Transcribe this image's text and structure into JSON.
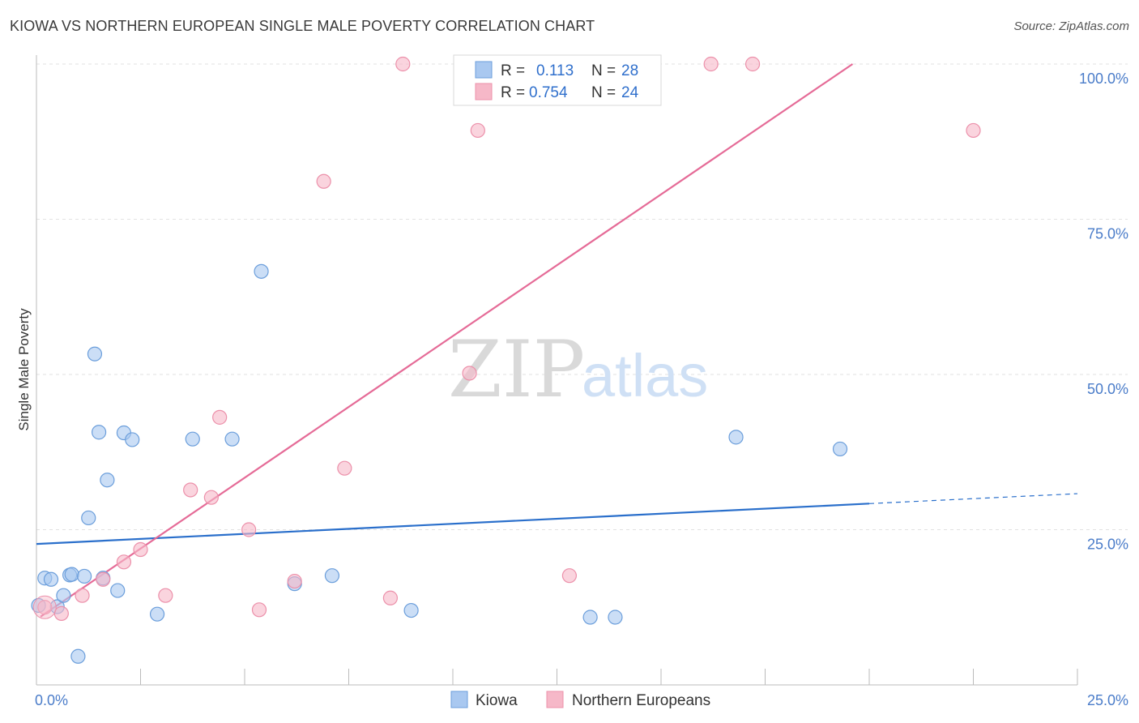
{
  "title": "KIOWA VS NORTHERN EUROPEAN SINGLE MALE POVERTY CORRELATION CHART",
  "source": "Source: ZipAtlas.com",
  "watermark": {
    "zip": "ZIP",
    "atlas": "atlas"
  },
  "legend_top": [
    {
      "r_label": "R =",
      "r_value": "0.113",
      "n_label": "N =",
      "n_value": "28",
      "color": "#a9c8f0"
    },
    {
      "r_label": "R =",
      "r_value": "0.754",
      "n_label": "N =",
      "n_value": "24",
      "color": "#f6b8c8"
    }
  ],
  "chart_data": {
    "type": "scatter",
    "title": "KIOWA VS NORTHERN EUROPEAN SINGLE MALE POVERTY CORRELATION CHART",
    "xlabel": "",
    "ylabel": "Single Male Poverty",
    "xlim": [
      0,
      25
    ],
    "ylim": [
      0,
      100
    ],
    "x_tick_labels": [
      "0.0%",
      "25.0%"
    ],
    "y_ticks": [
      25,
      50,
      75,
      100
    ],
    "y_tick_labels": [
      "25.0%",
      "50.0%",
      "75.0%",
      "100.0%"
    ],
    "grid": true,
    "legend_placement": "bottom-center",
    "series": [
      {
        "name": "Kiowa",
        "color": "#a9c8f0",
        "stroke": "#6b9edb",
        "line_color": "#2a6fcb",
        "trend": {
          "x": [
            0,
            20
          ],
          "y": [
            22.7,
            29.2
          ],
          "dashed_to_x": 25,
          "dashed_to_y": 30.8
        },
        "points": [
          {
            "x": 0.05,
            "y": 12.8
          },
          {
            "x": 0.2,
            "y": 17.2
          },
          {
            "x": 0.35,
            "y": 17.0
          },
          {
            "x": 0.5,
            "y": 12.6
          },
          {
            "x": 0.65,
            "y": 14.4
          },
          {
            "x": 0.8,
            "y": 17.7
          },
          {
            "x": 0.85,
            "y": 17.8
          },
          {
            "x": 1.0,
            "y": 4.6
          },
          {
            "x": 1.15,
            "y": 17.5
          },
          {
            "x": 1.25,
            "y": 26.9
          },
          {
            "x": 1.4,
            "y": 53.3
          },
          {
            "x": 1.5,
            "y": 40.7
          },
          {
            "x": 1.6,
            "y": 17.2
          },
          {
            "x": 1.7,
            "y": 33.0
          },
          {
            "x": 1.95,
            "y": 15.2
          },
          {
            "x": 2.1,
            "y": 40.6
          },
          {
            "x": 2.3,
            "y": 39.5
          },
          {
            "x": 2.9,
            "y": 11.4
          },
          {
            "x": 3.75,
            "y": 39.6
          },
          {
            "x": 4.7,
            "y": 39.6
          },
          {
            "x": 5.4,
            "y": 66.6
          },
          {
            "x": 6.2,
            "y": 16.3
          },
          {
            "x": 7.1,
            "y": 17.6
          },
          {
            "x": 9.0,
            "y": 12.0
          },
          {
            "x": 13.3,
            "y": 10.9
          },
          {
            "x": 13.9,
            "y": 10.9
          },
          {
            "x": 16.8,
            "y": 39.9
          },
          {
            "x": 19.3,
            "y": 38.0
          }
        ]
      },
      {
        "name": "Northern Europeans",
        "color": "#f6b8c8",
        "stroke": "#ec90aa",
        "line_color": "#e56b97",
        "trend": {
          "x": [
            0.1,
            19.6
          ],
          "y": [
            11.0,
            100.0
          ]
        },
        "points": [
          {
            "x": 0.2,
            "y": 12.5
          },
          {
            "x": 0.6,
            "y": 11.5
          },
          {
            "x": 1.1,
            "y": 14.4
          },
          {
            "x": 1.6,
            "y": 17.0
          },
          {
            "x": 2.1,
            "y": 19.8
          },
          {
            "x": 2.5,
            "y": 21.8
          },
          {
            "x": 3.1,
            "y": 14.4
          },
          {
            "x": 3.7,
            "y": 31.4
          },
          {
            "x": 4.2,
            "y": 30.2
          },
          {
            "x": 4.4,
            "y": 43.1
          },
          {
            "x": 5.1,
            "y": 25.0
          },
          {
            "x": 5.35,
            "y": 12.1
          },
          {
            "x": 6.2,
            "y": 16.7
          },
          {
            "x": 6.9,
            "y": 81.1
          },
          {
            "x": 7.4,
            "y": 34.9
          },
          {
            "x": 8.5,
            "y": 14.0
          },
          {
            "x": 8.8,
            "y": 100.0
          },
          {
            "x": 10.4,
            "y": 50.2
          },
          {
            "x": 10.6,
            "y": 89.3
          },
          {
            "x": 12.8,
            "y": 17.6
          },
          {
            "x": 14.1,
            "y": 100.0
          },
          {
            "x": 16.2,
            "y": 100.0
          },
          {
            "x": 17.2,
            "y": 100.0
          },
          {
            "x": 22.5,
            "y": 89.3
          }
        ]
      }
    ]
  }
}
